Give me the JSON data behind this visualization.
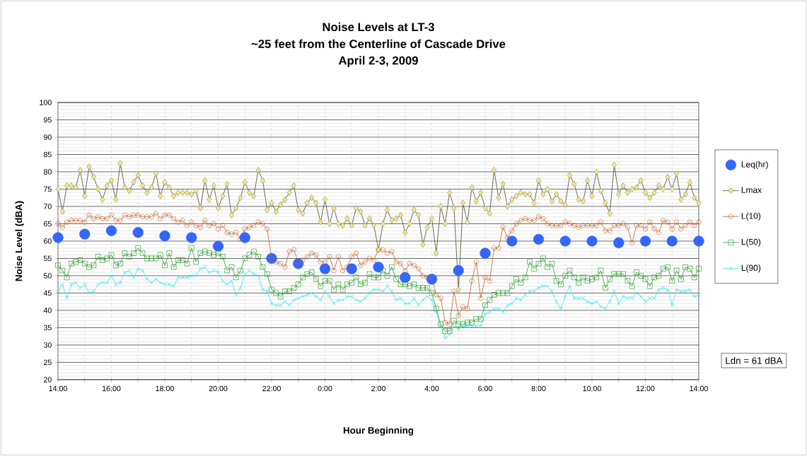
{
  "chart_data": {
    "type": "line",
    "title": "Noise Levels at LT-3",
    "subtitle": "~25 feet from the Centerline of Cascade Drive",
    "annotations": [
      "April 2-3, 2009",
      "Ldn = 61 dBA"
    ],
    "xlabel": "Hour Beginning",
    "ylabel": "Noise Level (dBA)",
    "xlim": [
      "2009-04-02T14:00",
      "2009-04-03T14:00"
    ],
    "ylim": [
      20,
      100
    ],
    "xticks": [
      {
        "value": "2009-04-02T14:00",
        "label": "14:00"
      },
      {
        "value": "2009-04-02T15:00",
        "label": null
      },
      {
        "value": "2009-04-02T16:00",
        "label": "16:00"
      },
      {
        "value": "2009-04-02T17:00",
        "label": null
      },
      {
        "value": "2009-04-02T18:00",
        "label": "18:00"
      },
      {
        "value": "2009-04-02T19:00",
        "label": null
      },
      {
        "value": "2009-04-02T20:00",
        "label": "20:00"
      },
      {
        "value": "2009-04-02T21:00",
        "label": null
      },
      {
        "value": "2009-04-02T22:00",
        "label": "22:00"
      },
      {
        "value": "2009-04-02T23:00",
        "label": null
      },
      {
        "value": "2009-04-03T00:00",
        "label": "0:00"
      },
      {
        "value": "2009-04-03T01:00",
        "label": null
      },
      {
        "value": "2009-04-03T02:00",
        "label": "2:00"
      },
      {
        "value": "2009-04-03T03:00",
        "label": null
      },
      {
        "value": "2009-04-03T04:00",
        "label": "4:00"
      },
      {
        "value": "2009-04-03T05:00",
        "label": null
      },
      {
        "value": "2009-04-03T06:00",
        "label": "6:00"
      },
      {
        "value": "2009-04-03T07:00",
        "label": null
      },
      {
        "value": "2009-04-03T08:00",
        "label": "8:00"
      },
      {
        "value": "2009-04-03T09:00",
        "label": null
      },
      {
        "value": "2009-04-03T10:00",
        "label": "10:00"
      },
      {
        "value": "2009-04-03T11:00",
        "label": null
      },
      {
        "value": "2009-04-03T12:00",
        "label": "12:00"
      },
      {
        "value": "2009-04-03T13:00",
        "label": null
      },
      {
        "value": "2009-04-03T14:00",
        "label": "14:00"
      }
    ],
    "yticks": [
      20,
      25,
      30,
      35,
      40,
      45,
      50,
      55,
      60,
      65,
      70,
      75,
      80,
      85,
      90,
      95,
      100
    ],
    "grid": true,
    "legend": "right",
    "line_style": "solid",
    "x": [
      "2009-04-02T14:00",
      "2009-04-02T14:10",
      "2009-04-02T14:20",
      "2009-04-02T14:30",
      "2009-04-02T14:40",
      "2009-04-02T14:50",
      "2009-04-02T15:00",
      "2009-04-02T15:10",
      "2009-04-02T15:20",
      "2009-04-02T15:30",
      "2009-04-02T15:40",
      "2009-04-02T15:50",
      "2009-04-02T16:00",
      "2009-04-02T16:10",
      "2009-04-02T16:20",
      "2009-04-02T16:30",
      "2009-04-02T16:40",
      "2009-04-02T16:50",
      "2009-04-02T17:00",
      "2009-04-02T17:10",
      "2009-04-02T17:20",
      "2009-04-02T17:30",
      "2009-04-02T17:40",
      "2009-04-02T17:50",
      "2009-04-02T18:00",
      "2009-04-02T18:10",
      "2009-04-02T18:20",
      "2009-04-02T18:30",
      "2009-04-02T18:40",
      "2009-04-02T18:50",
      "2009-04-02T19:00",
      "2009-04-02T19:10",
      "2009-04-02T19:20",
      "2009-04-02T19:30",
      "2009-04-02T19:40",
      "2009-04-02T19:50",
      "2009-04-02T20:00",
      "2009-04-02T20:10",
      "2009-04-02T20:20",
      "2009-04-02T20:30",
      "2009-04-02T20:40",
      "2009-04-02T20:50",
      "2009-04-02T21:00",
      "2009-04-02T21:10",
      "2009-04-02T21:20",
      "2009-04-02T21:30",
      "2009-04-02T21:40",
      "2009-04-02T21:50",
      "2009-04-02T22:00",
      "2009-04-02T22:10",
      "2009-04-02T22:20",
      "2009-04-02T22:30",
      "2009-04-02T22:40",
      "2009-04-02T22:50",
      "2009-04-02T23:00",
      "2009-04-02T23:10",
      "2009-04-02T23:20",
      "2009-04-02T23:30",
      "2009-04-02T23:40",
      "2009-04-02T23:50",
      "2009-04-03T00:00",
      "2009-04-03T00:10",
      "2009-04-03T00:20",
      "2009-04-03T00:30",
      "2009-04-03T00:40",
      "2009-04-03T00:50",
      "2009-04-03T01:00",
      "2009-04-03T01:10",
      "2009-04-03T01:20",
      "2009-04-03T01:30",
      "2009-04-03T01:40",
      "2009-04-03T01:50",
      "2009-04-03T02:00",
      "2009-04-03T02:10",
      "2009-04-03T02:20",
      "2009-04-03T02:30",
      "2009-04-03T02:40",
      "2009-04-03T02:50",
      "2009-04-03T03:00",
      "2009-04-03T03:10",
      "2009-04-03T03:20",
      "2009-04-03T03:30",
      "2009-04-03T03:40",
      "2009-04-03T03:50",
      "2009-04-03T04:00",
      "2009-04-03T04:10",
      "2009-04-03T04:20",
      "2009-04-03T04:30",
      "2009-04-03T04:40",
      "2009-04-03T04:50",
      "2009-04-03T05:00",
      "2009-04-03T05:10",
      "2009-04-03T05:20",
      "2009-04-03T05:30",
      "2009-04-03T05:40",
      "2009-04-03T05:50",
      "2009-04-03T06:00",
      "2009-04-03T06:10",
      "2009-04-03T06:20",
      "2009-04-03T06:30",
      "2009-04-03T06:40",
      "2009-04-03T06:50",
      "2009-04-03T07:00",
      "2009-04-03T07:10",
      "2009-04-03T07:20",
      "2009-04-03T07:30",
      "2009-04-03T07:40",
      "2009-04-03T07:50",
      "2009-04-03T08:00",
      "2009-04-03T08:10",
      "2009-04-03T08:20",
      "2009-04-03T08:30",
      "2009-04-03T08:40",
      "2009-04-03T08:50",
      "2009-04-03T09:00",
      "2009-04-03T09:10",
      "2009-04-03T09:20",
      "2009-04-03T09:30",
      "2009-04-03T09:40",
      "2009-04-03T09:50",
      "2009-04-03T10:00",
      "2009-04-03T10:10",
      "2009-04-03T10:20",
      "2009-04-03T10:30",
      "2009-04-03T10:40",
      "2009-04-03T10:50",
      "2009-04-03T11:00",
      "2009-04-03T11:10",
      "2009-04-03T11:20",
      "2009-04-03T11:30",
      "2009-04-03T11:40",
      "2009-04-03T11:50",
      "2009-04-03T12:00",
      "2009-04-03T12:10",
      "2009-04-03T12:20",
      "2009-04-03T12:30",
      "2009-04-03T12:40",
      "2009-04-03T12:50",
      "2009-04-03T13:00",
      "2009-04-03T13:10",
      "2009-04-03T13:20",
      "2009-04-03T13:30",
      "2009-04-03T13:40",
      "2009-04-03T13:50",
      "2009-04-03T14:00"
    ],
    "series": [
      {
        "name": "Leq(hr)",
        "type": "scatter",
        "marker": "circle",
        "color": "#3366ff",
        "x": [
          "2009-04-02T14:00",
          "2009-04-02T15:00",
          "2009-04-02T16:00",
          "2009-04-02T17:00",
          "2009-04-02T18:00",
          "2009-04-02T19:00",
          "2009-04-02T20:00",
          "2009-04-02T21:00",
          "2009-04-02T22:00",
          "2009-04-02T23:00",
          "2009-04-03T00:00",
          "2009-04-03T01:00",
          "2009-04-03T02:00",
          "2009-04-03T03:00",
          "2009-04-03T04:00",
          "2009-04-03T05:00",
          "2009-04-03T06:00",
          "2009-04-03T07:00",
          "2009-04-03T08:00",
          "2009-04-03T09:00",
          "2009-04-03T10:00",
          "2009-04-03T11:00",
          "2009-04-03T12:00",
          "2009-04-03T13:00",
          "2009-04-03T14:00"
        ],
        "values": [
          61,
          62,
          63,
          62.5,
          61.5,
          61,
          58.5,
          61,
          55,
          53.5,
          52,
          52,
          52.5,
          49.5,
          49,
          51.5,
          56.5,
          60,
          60.5,
          60,
          60,
          59.5,
          60,
          60,
          60
        ]
      },
      {
        "name": "Lmax",
        "marker": "diamond",
        "color": "#f0e68c",
        "values": [
          75,
          68.5,
          76,
          76,
          75.5,
          80.5,
          73,
          81.5,
          78.5,
          75,
          72,
          76,
          77.5,
          72,
          82.5,
          75.5,
          74.5,
          77,
          79,
          76,
          74,
          75.5,
          79.5,
          73,
          77,
          75.5,
          73,
          74,
          74,
          74,
          73.5,
          74.5,
          69.5,
          77.5,
          72,
          76,
          69.5,
          73,
          76.5,
          67.5,
          69.5,
          72.5,
          77,
          74,
          73,
          80.5,
          77.5,
          69,
          71,
          68.5,
          70.5,
          72,
          74,
          76,
          69,
          68,
          71,
          72.5,
          71,
          65.5,
          72,
          65,
          69.5,
          65,
          64.5,
          66.5,
          64.5,
          69.5,
          68.5,
          64.5,
          66.5,
          64.5,
          57.5,
          65,
          69,
          66,
          66.5,
          67.5,
          62.5,
          65,
          69,
          67.5,
          59,
          64,
          66.5,
          56.5,
          70,
          65,
          74,
          69.5,
          46,
          71,
          65.5,
          75.5,
          71.5,
          74,
          69.5,
          68,
          80.5,
          72.5,
          76.5,
          70,
          72,
          73,
          74,
          73.5,
          73.5,
          71,
          77.5,
          73.5,
          75,
          71.5,
          73.5,
          71.5,
          70.5,
          79,
          76.5,
          72,
          71.5,
          77.5,
          73,
          80,
          74.5,
          71,
          68,
          82,
          73.5,
          76,
          74,
          75,
          75.5,
          77.5,
          74,
          72.5,
          74,
          76,
          75,
          78.5,
          75,
          79.5,
          72,
          73.5,
          77,
          72.5,
          71
        ]
      },
      {
        "name": "L(10)",
        "marker": "circle",
        "color": "#c0602a",
        "values": [
          65,
          64,
          65.5,
          66,
          66,
          66,
          65.5,
          67.5,
          66.5,
          67,
          66.5,
          66.5,
          67.5,
          66,
          66,
          67.5,
          67,
          67.5,
          67.5,
          67,
          67,
          67,
          68,
          66.5,
          67.5,
          67.5,
          66.5,
          65.5,
          66,
          64.5,
          65.5,
          64.5,
          64,
          66,
          64.5,
          65,
          63.5,
          64.5,
          62.5,
          62,
          62.5,
          60.5,
          63.5,
          64,
          64.5,
          65.5,
          65,
          63.5,
          55,
          54,
          53.5,
          52.5,
          57,
          57.5,
          54,
          54.5,
          55.5,
          56.5,
          56,
          54,
          54,
          55.5,
          51.5,
          55.5,
          51.5,
          52.5,
          55.5,
          56.5,
          53,
          54,
          55,
          54.5,
          57.5,
          57.5,
          56.5,
          57,
          54,
          53.5,
          51.5,
          53.5,
          53,
          52,
          50,
          49.5,
          49.5,
          44.5,
          43.5,
          36.5,
          36,
          45.5,
          38.5,
          41,
          40.5,
          48.5,
          54,
          43.5,
          49.5,
          48.5,
          58,
          58,
          64,
          61,
          63,
          65,
          66,
          66.5,
          66,
          66,
          67,
          66.5,
          65,
          64.5,
          64.5,
          64.5,
          65.5,
          65,
          64.5,
          64,
          64.5,
          64.5,
          64.5,
          64.5,
          65.5,
          63,
          63,
          64.5,
          64.5,
          65,
          64,
          59.5,
          64.5,
          64.5,
          63.5,
          65.5,
          63.5,
          62.5,
          66,
          65.5,
          63.5,
          65.5,
          63.5,
          64.5,
          65.5,
          64.5,
          65.5
        ]
      },
      {
        "name": "L(50)",
        "marker": "square",
        "color": "#2e9a2e",
        "values": [
          53,
          51.5,
          49.5,
          53.5,
          54,
          54.5,
          53.5,
          52.5,
          53,
          55.5,
          54.5,
          55,
          56,
          53,
          53.5,
          56.5,
          55.5,
          56.5,
          58,
          56.5,
          55,
          55,
          55,
          56,
          53,
          56.5,
          52.5,
          54.5,
          54.5,
          53.5,
          58,
          54,
          56.5,
          57,
          56.5,
          56,
          56.5,
          55.5,
          51.5,
          52.5,
          49.5,
          51.5,
          55,
          56,
          57,
          55.5,
          52.5,
          50.5,
          46,
          45,
          44,
          45.5,
          45.5,
          46.5,
          47.5,
          49.5,
          50.5,
          51,
          49,
          47,
          48.5,
          48.5,
          46,
          47.5,
          46,
          47.5,
          48,
          49.5,
          47.5,
          48,
          50.5,
          49.5,
          49.5,
          51.5,
          50,
          52.5,
          49,
          47.5,
          47.5,
          47,
          47.5,
          46.5,
          46.5,
          46.5,
          45,
          40.5,
          36,
          34,
          34,
          37,
          36,
          36,
          36.5,
          36.5,
          37.5,
          37.5,
          41.5,
          43,
          44.5,
          45,
          45,
          45,
          47,
          49,
          48,
          49.5,
          54,
          52,
          53.5,
          55,
          52.5,
          53.5,
          48.5,
          47.5,
          50,
          51.5,
          49.5,
          48,
          49.5,
          48.5,
          49,
          49.5,
          51.5,
          46.5,
          49,
          50.5,
          50.5,
          50.5,
          48.5,
          47,
          51,
          50,
          49,
          47,
          49.5,
          50,
          52,
          52.5,
          48.5,
          51.5,
          49,
          52.5,
          52,
          49.5,
          52
        ]
      },
      {
        "name": "L(90)",
        "marker": "cross",
        "color": "#33e6f0",
        "values": [
          45.5,
          47.5,
          43.5,
          47.5,
          48,
          46.5,
          47.5,
          45,
          45.5,
          47.5,
          48,
          48,
          50,
          47.5,
          48,
          51,
          51.5,
          49.5,
          52,
          51.5,
          49,
          48,
          49,
          48,
          47.5,
          47.5,
          47,
          49.5,
          49.5,
          49.5,
          50,
          50,
          52,
          52.5,
          51,
          51.5,
          51,
          48.5,
          47.5,
          48.5,
          44.5,
          46.5,
          50.5,
          51.5,
          50.5,
          50,
          46,
          45.5,
          42,
          41.5,
          41.5,
          42.5,
          41.5,
          43,
          43.5,
          44,
          44.5,
          45,
          44,
          43,
          45.5,
          44,
          42,
          43,
          43,
          44,
          44,
          43,
          42.5,
          43.5,
          45,
          46,
          46,
          45.5,
          47,
          45.5,
          43,
          43.5,
          42,
          42,
          43.5,
          41.5,
          43,
          44,
          43,
          39.5,
          35.5,
          32,
          33,
          35.5,
          34.5,
          35.5,
          35.5,
          35.5,
          35.5,
          35.5,
          39,
          39.5,
          40.5,
          40.5,
          39.5,
          41.5,
          42,
          43.5,
          43,
          44.5,
          45.5,
          45.5,
          46.5,
          47,
          47,
          45.5,
          42.5,
          40.5,
          44,
          47,
          43.5,
          43.5,
          43.5,
          42.5,
          42,
          42.5,
          41,
          40.5,
          42.5,
          45.5,
          42,
          44,
          43.5,
          43.5,
          45,
          44,
          42.5,
          43.5,
          43.5,
          46,
          46.5,
          46,
          41.5,
          46,
          45.5,
          45.5,
          46,
          44,
          44.5
        ]
      }
    ]
  }
}
